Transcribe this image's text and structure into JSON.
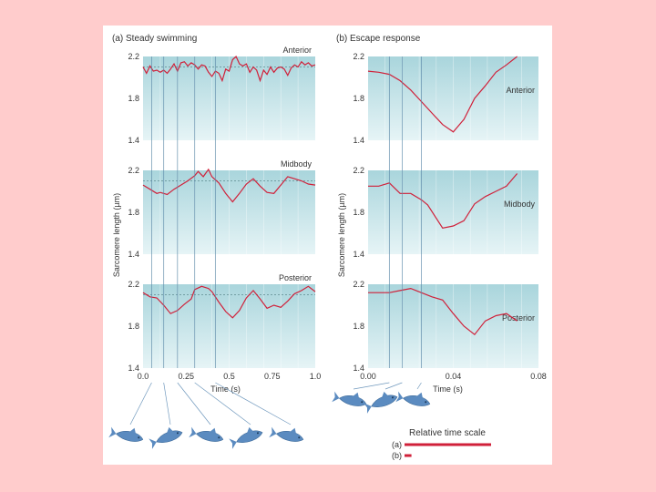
{
  "colors": {
    "background": "#ffcccc",
    "panel_top": "#a9d5dc",
    "panel_bottom": "#e6f4f6",
    "series": "#d0213a",
    "fish": "#5b8bc0"
  },
  "chart_data": [
    {
      "type": "line",
      "title": "(a) Steady swimming",
      "xlabel": "Time (s)",
      "ylabel": "Sarcomere length (µm)",
      "xlim": [
        0,
        1.0
      ],
      "ylim": [
        1.4,
        2.2
      ],
      "xticks": [
        "0.0",
        "0.25",
        "0.5",
        "0.75",
        "1.0"
      ],
      "yticks": [
        "2.2",
        "1.8",
        "1.4"
      ],
      "reference_line": 2.1,
      "time_markers": [
        0.05,
        0.12,
        0.2,
        0.3,
        0.42
      ],
      "series": [
        {
          "name": "Anterior",
          "x": [
            0,
            0.02,
            0.04,
            0.06,
            0.08,
            0.1,
            0.12,
            0.14,
            0.16,
            0.18,
            0.2,
            0.22,
            0.24,
            0.26,
            0.28,
            0.3,
            0.32,
            0.34,
            0.36,
            0.38,
            0.4,
            0.42,
            0.44,
            0.46,
            0.48,
            0.5,
            0.52,
            0.54,
            0.56,
            0.58,
            0.6,
            0.62,
            0.64,
            0.66,
            0.68,
            0.7,
            0.72,
            0.74,
            0.76,
            0.78,
            0.8,
            0.82,
            0.84,
            0.86,
            0.88,
            0.9,
            0.92,
            0.94,
            0.96,
            0.98,
            1.0
          ],
          "values": [
            2.1,
            2.04,
            2.11,
            2.06,
            2.07,
            2.05,
            2.07,
            2.04,
            2.08,
            2.13,
            2.06,
            2.14,
            2.15,
            2.11,
            2.14,
            2.12,
            2.08,
            2.12,
            2.11,
            2.05,
            2.01,
            2.06,
            2.04,
            1.97,
            2.08,
            2.06,
            2.17,
            2.2,
            2.13,
            2.11,
            2.13,
            2.05,
            2.1,
            2.07,
            1.97,
            2.07,
            2.03,
            2.1,
            2.05,
            2.09,
            2.1,
            2.08,
            2.02,
            2.09,
            2.12,
            2.1,
            2.15,
            2.12,
            2.14,
            2.11,
            2.12
          ]
        },
        {
          "name": "Midbody",
          "x": [
            0,
            0.04,
            0.08,
            0.1,
            0.14,
            0.18,
            0.22,
            0.26,
            0.3,
            0.32,
            0.35,
            0.38,
            0.4,
            0.44,
            0.48,
            0.52,
            0.56,
            0.6,
            0.64,
            0.68,
            0.72,
            0.76,
            0.8,
            0.84,
            0.88,
            0.92,
            0.96,
            1.0
          ],
          "values": [
            2.06,
            2.02,
            1.98,
            1.99,
            1.97,
            2.02,
            2.06,
            2.1,
            2.15,
            2.19,
            2.14,
            2.21,
            2.14,
            2.08,
            1.98,
            1.9,
            1.98,
            2.07,
            2.12,
            2.05,
            1.99,
            1.98,
            2.06,
            2.14,
            2.12,
            2.1,
            2.07,
            2.06
          ]
        },
        {
          "name": "Posterior",
          "x": [
            0,
            0.04,
            0.08,
            0.12,
            0.16,
            0.2,
            0.24,
            0.28,
            0.3,
            0.34,
            0.38,
            0.4,
            0.44,
            0.48,
            0.52,
            0.56,
            0.6,
            0.64,
            0.68,
            0.72,
            0.76,
            0.8,
            0.84,
            0.88,
            0.92,
            0.96,
            1.0
          ],
          "values": [
            2.12,
            2.08,
            2.07,
            2.0,
            1.92,
            1.95,
            2.01,
            2.06,
            2.15,
            2.18,
            2.16,
            2.13,
            2.03,
            1.94,
            1.88,
            1.95,
            2.07,
            2.14,
            2.06,
            1.97,
            2.0,
            1.98,
            2.04,
            2.11,
            2.14,
            2.18,
            2.13
          ]
        }
      ]
    },
    {
      "type": "line",
      "title": "(b) Escape response",
      "xlabel": "Time (s)",
      "ylabel": "Sarcomere length (µm)",
      "xlim": [
        0,
        0.08
      ],
      "ylim": [
        1.4,
        2.2
      ],
      "xticks": [
        "0.00",
        "0.04",
        "0.08"
      ],
      "yticks": [
        "2.2",
        "1.8",
        "1.4"
      ],
      "time_markers": [
        0.01,
        0.016,
        0.025
      ],
      "series": [
        {
          "name": "Anterior",
          "x": [
            0,
            0.005,
            0.01,
            0.015,
            0.02,
            0.025,
            0.03,
            0.035,
            0.04,
            0.045,
            0.05,
            0.055,
            0.06,
            0.065,
            0.07
          ],
          "values": [
            2.06,
            2.05,
            2.03,
            1.97,
            1.88,
            1.77,
            1.66,
            1.55,
            1.48,
            1.6,
            1.8,
            1.92,
            2.05,
            2.12,
            2.2
          ]
        },
        {
          "name": "Midbody",
          "x": [
            0,
            0.005,
            0.01,
            0.015,
            0.02,
            0.025,
            0.028,
            0.035,
            0.04,
            0.045,
            0.05,
            0.055,
            0.06,
            0.065,
            0.07
          ],
          "values": [
            2.05,
            2.05,
            2.08,
            1.98,
            1.98,
            1.92,
            1.87,
            1.65,
            1.67,
            1.72,
            1.88,
            1.95,
            2.0,
            2.05,
            2.17
          ]
        },
        {
          "name": "Posterior",
          "x": [
            0,
            0.01,
            0.015,
            0.02,
            0.025,
            0.03,
            0.035,
            0.04,
            0.045,
            0.05,
            0.055,
            0.06,
            0.065,
            0.07
          ],
          "values": [
            2.12,
            2.12,
            2.14,
            2.16,
            2.12,
            2.08,
            2.05,
            1.92,
            1.8,
            1.72,
            1.85,
            1.9,
            1.92,
            1.85
          ]
        }
      ]
    }
  ],
  "legend": {
    "title": "Relative time scale",
    "items": [
      {
        "label": "(a)",
        "length": 1.0
      },
      {
        "label": "(b)",
        "length": 0.08
      }
    ]
  }
}
